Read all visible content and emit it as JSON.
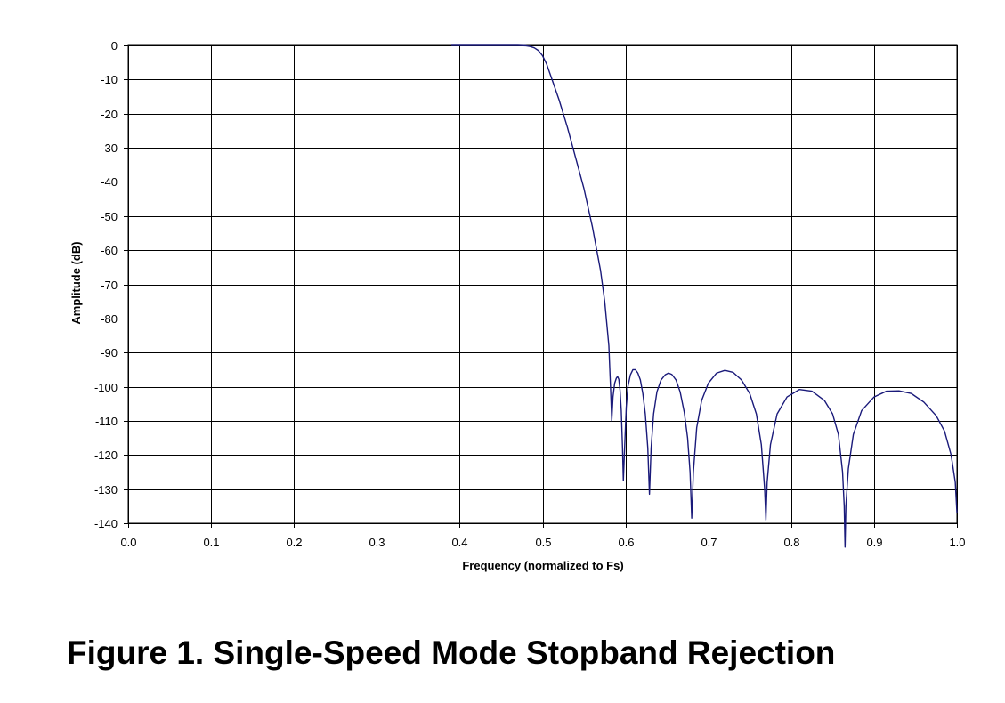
{
  "chart_data": {
    "type": "line",
    "title": "",
    "xlabel": "Frequency (normalized to Fs)",
    "ylabel": "Amplitude (dB)",
    "xlim": [
      0.0,
      1.0
    ],
    "ylim": [
      -140,
      0
    ],
    "x_ticks": [
      "0.0",
      "0.1",
      "0.2",
      "0.3",
      "0.4",
      "0.5",
      "0.6",
      "0.7",
      "0.8",
      "0.9",
      "1.0"
    ],
    "y_ticks": [
      "0",
      "-10",
      "-20",
      "-30",
      "-40",
      "-50",
      "-60",
      "-70",
      "-80",
      "-90",
      "-100",
      "-110",
      "-120",
      "-130",
      "-140"
    ],
    "grid": true,
    "line_color": "#1a1a7a",
    "series": [
      {
        "name": "Stopband Rejection",
        "points": [
          [
            0.39,
            0.0
          ],
          [
            0.42,
            0.0
          ],
          [
            0.45,
            0.0
          ],
          [
            0.47,
            0.0
          ],
          [
            0.48,
            -0.1
          ],
          [
            0.485,
            -0.3
          ],
          [
            0.49,
            -0.7
          ],
          [
            0.495,
            -1.5
          ],
          [
            0.5,
            -3.0
          ],
          [
            0.505,
            -5.5
          ],
          [
            0.51,
            -9.0
          ],
          [
            0.52,
            -16.0
          ],
          [
            0.53,
            -24.0
          ],
          [
            0.54,
            -33.0
          ],
          [
            0.55,
            -42.0
          ],
          [
            0.56,
            -53.0
          ],
          [
            0.57,
            -66.0
          ],
          [
            0.575,
            -75.0
          ],
          [
            0.58,
            -88.0
          ],
          [
            0.582,
            -100.0
          ],
          [
            0.5835,
            -110.0
          ],
          [
            0.585,
            -103.0
          ],
          [
            0.587,
            -99.0
          ],
          [
            0.589,
            -97.5
          ],
          [
            0.5905,
            -97.0
          ],
          [
            0.592,
            -97.8
          ],
          [
            0.5935,
            -101.0
          ],
          [
            0.595,
            -107.0
          ],
          [
            0.5965,
            -118.0
          ],
          [
            0.5975,
            -127.5
          ],
          [
            0.599,
            -118.0
          ],
          [
            0.601,
            -106.0
          ],
          [
            0.603,
            -100.0
          ],
          [
            0.606,
            -96.5
          ],
          [
            0.609,
            -95.0
          ],
          [
            0.612,
            -95.0
          ],
          [
            0.615,
            -96.0
          ],
          [
            0.618,
            -98.0
          ],
          [
            0.621,
            -102.0
          ],
          [
            0.624,
            -108.0
          ],
          [
            0.627,
            -118.0
          ],
          [
            0.629,
            -131.5
          ],
          [
            0.631,
            -118.0
          ],
          [
            0.634,
            -108.0
          ],
          [
            0.638,
            -101.5
          ],
          [
            0.643,
            -98.0
          ],
          [
            0.648,
            -96.5
          ],
          [
            0.652,
            -96.0
          ],
          [
            0.656,
            -96.4
          ],
          [
            0.661,
            -98.0
          ],
          [
            0.666,
            -101.5
          ],
          [
            0.671,
            -107.5
          ],
          [
            0.675,
            -115.0
          ],
          [
            0.678,
            -125.0
          ],
          [
            0.68,
            -138.5
          ],
          [
            0.682,
            -125.0
          ],
          [
            0.686,
            -112.0
          ],
          [
            0.692,
            -104.0
          ],
          [
            0.7,
            -99.0
          ],
          [
            0.71,
            -96.0
          ],
          [
            0.72,
            -95.2
          ],
          [
            0.73,
            -95.8
          ],
          [
            0.74,
            -98.0
          ],
          [
            0.75,
            -102.0
          ],
          [
            0.758,
            -108.0
          ],
          [
            0.764,
            -117.0
          ],
          [
            0.768,
            -130.0
          ],
          [
            0.7695,
            -139.0
          ],
          [
            0.771,
            -128.0
          ],
          [
            0.775,
            -117.0
          ],
          [
            0.783,
            -108.0
          ],
          [
            0.795,
            -103.0
          ],
          [
            0.81,
            -100.8
          ],
          [
            0.825,
            -101.3
          ],
          [
            0.84,
            -104.0
          ],
          [
            0.85,
            -108.0
          ],
          [
            0.857,
            -114.0
          ],
          [
            0.862,
            -125.0
          ],
          [
            0.864,
            -135.0
          ],
          [
            0.865,
            -147.0
          ],
          [
            0.866,
            -135.0
          ],
          [
            0.869,
            -124.0
          ],
          [
            0.875,
            -114.0
          ],
          [
            0.885,
            -107.0
          ],
          [
            0.9,
            -103.0
          ],
          [
            0.915,
            -101.3
          ],
          [
            0.93,
            -101.2
          ],
          [
            0.945,
            -102.0
          ],
          [
            0.96,
            -104.5
          ],
          [
            0.975,
            -108.5
          ],
          [
            0.985,
            -113.0
          ],
          [
            0.993,
            -120.0
          ],
          [
            0.998,
            -128.0
          ],
          [
            1.0,
            -137.0
          ]
        ]
      }
    ]
  },
  "caption": "Figure 1.  Single-Speed Mode Stopband Rejection"
}
